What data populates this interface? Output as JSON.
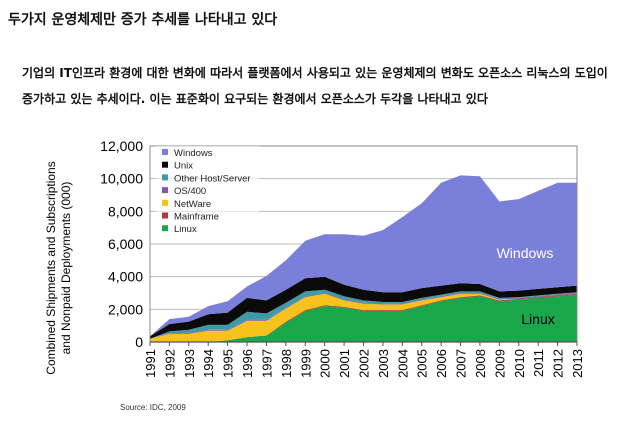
{
  "page": {
    "title": "두가지 운영체제만 증가 추세를 나타내고 있다",
    "paragraph_line1": "기업의 IT인프라 환경에 대한 변화에 따라서 플랫폼에서 사용되고 있는 운영체제의 변화도 오픈소스 리눅스의 도입이",
    "paragraph_line2": "증가하고 있는 추세이다. 이는 표준화이 요구되는 환경에서 오픈소스가 두각을 나타내고 있다"
  },
  "chart_data": {
    "type": "area",
    "stacked": true,
    "title": "",
    "xlabel": "",
    "ylabel_line1": "Combined Shipments and Subscriptions",
    "ylabel_line2": "and Nonpaid Deployments (000)",
    "source": "Source: IDC, 2009",
    "ylim": [
      0,
      12000
    ],
    "yticks": [
      "0",
      "2,000",
      "4,000",
      "6,000",
      "8,000",
      "10,000",
      "12,000"
    ],
    "grid": true,
    "legend_position": "top-left",
    "x": [
      "1991",
      "1992",
      "1993",
      "1994",
      "1995",
      "1996",
      "1997",
      "1998",
      "1999",
      "2000",
      "2001",
      "2002",
      "2003",
      "2004",
      "2005",
      "2006",
      "2007",
      "2008",
      "2009",
      "2010",
      "2011",
      "2012",
      "2013"
    ],
    "series": [
      {
        "name": "Linux",
        "color": "#1aa64a",
        "values": [
          0,
          0,
          0,
          0,
          100,
          300,
          400,
          1200,
          1900,
          2200,
          2100,
          1900,
          1900,
          1900,
          2200,
          2500,
          2700,
          2800,
          2500,
          2600,
          2700,
          2800,
          2900
        ]
      },
      {
        "name": "Mainframe",
        "color": "#b03a3a",
        "values": [
          0,
          0,
          0,
          0,
          0,
          0,
          0,
          50,
          50,
          50,
          50,
          50,
          50,
          50,
          50,
          50,
          50,
          50,
          50,
          50,
          50,
          50,
          50
        ]
      },
      {
        "name": "NetWare",
        "color": "#f6c21b",
        "values": [
          200,
          500,
          500,
          700,
          600,
          1000,
          900,
          800,
          800,
          700,
          400,
          400,
          350,
          350,
          300,
          200,
          200,
          100,
          50,
          0,
          0,
          0,
          0
        ]
      },
      {
        "name": "OS/400",
        "color": "#7f5aa8",
        "values": [
          0,
          50,
          50,
          50,
          50,
          50,
          50,
          50,
          50,
          50,
          50,
          50,
          50,
          50,
          50,
          50,
          50,
          50,
          50,
          50,
          50,
          50,
          50
        ]
      },
      {
        "name": "Other Host/Server",
        "color": "#3f9aa8",
        "values": [
          0,
          100,
          200,
          300,
          300,
          500,
          400,
          300,
          300,
          200,
          200,
          150,
          100,
          100,
          100,
          100,
          100,
          100,
          50,
          50,
          50,
          50,
          50
        ]
      },
      {
        "name": "Unix",
        "color": "#0a0a0a",
        "values": [
          150,
          450,
          500,
          650,
          750,
          850,
          800,
          800,
          800,
          800,
          700,
          650,
          600,
          600,
          600,
          550,
          500,
          450,
          400,
          400,
          400,
          400,
          400
        ]
      },
      {
        "name": "Windows",
        "color": "#7a7fd9",
        "values": [
          0,
          300,
          300,
          500,
          700,
          700,
          1500,
          1800,
          2300,
          2600,
          3100,
          3300,
          3800,
          4600,
          5200,
          6300,
          6600,
          6600,
          5500,
          5600,
          6000,
          6400,
          6300
        ]
      }
    ],
    "annotations": [
      {
        "text": "Windows",
        "series": "Windows"
      },
      {
        "text": "Linux",
        "series": "Linux"
      }
    ]
  }
}
